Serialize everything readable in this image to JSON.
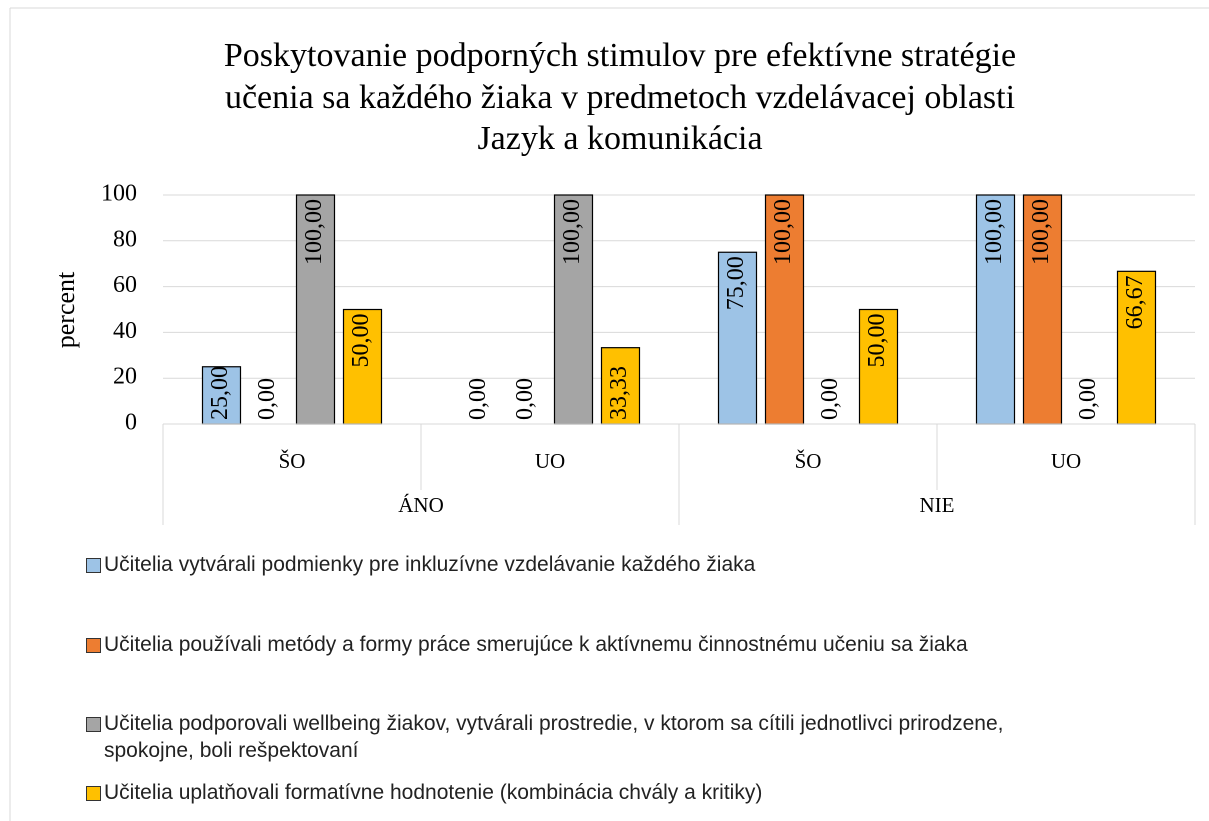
{
  "chart_data": {
    "type": "bar",
    "title": [
      "Poskytovanie podporných stimulov pre efektívne stratégie",
      "učenia sa každého žiaka v predmetoch vzdelávacej oblasti",
      "Jazyk a komunikácia"
    ],
    "y_label": "percent",
    "categories": [
      "ŠO",
      "UO",
      "ŠO",
      "UO"
    ],
    "groups": [
      "ÁNO",
      "NIE"
    ],
    "series": [
      {
        "name": "Učitelia vytvárali podmienky pre inkluzívne vzdelávanie každého žiaka",
        "color": "#9dc3e6",
        "values": [
          25,
          0,
          75,
          100
        ],
        "value_labels": [
          "25,00",
          "0,00",
          "75,00",
          "100,00"
        ]
      },
      {
        "name": "Učitelia používali metódy a formy práce smerujúce k aktívnemu činnostnému učeniu sa žiaka",
        "color": "#ed7d31",
        "values": [
          0,
          0,
          100,
          100
        ],
        "value_labels": [
          "0,00",
          "0,00",
          "100,00",
          "100,00"
        ]
      },
      {
        "name": "Učitelia podporovali wellbeing žiakov, vytvárali prostredie, v ktorom sa cítili jednotlivci prirodzene, spokojne, boli rešpektovaní",
        "color": "#a5a5a5",
        "values": [
          100,
          100,
          0,
          0
        ],
        "value_labels": [
          "100,00",
          "100,00",
          "0,00",
          "0,00"
        ]
      },
      {
        "name": "Učitelia uplatňovali formatívne hodnotenie (kombinácia chvály a kritiky)",
        "color": "#ffc000",
        "values": [
          50,
          33.33,
          50,
          66.67
        ],
        "value_labels": [
          "50,00",
          "33,33",
          "50,00",
          "66,67"
        ]
      }
    ],
    "ylim": [
      0,
      100
    ],
    "yticks": [
      0,
      20,
      40,
      60,
      80,
      100
    ],
    "grid": true,
    "legend": "bottom"
  }
}
